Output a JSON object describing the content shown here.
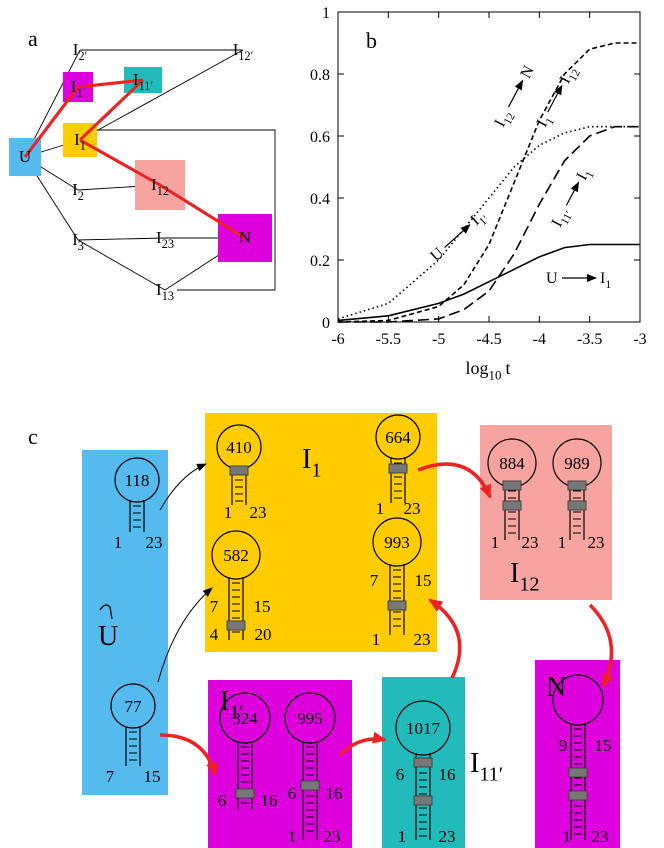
{
  "panel_a": {
    "label": "a",
    "nodes": [
      {
        "main": "I",
        "sub": "2′"
      },
      {
        "main": "I",
        "sub": "12′"
      },
      {
        "main": "I",
        "sub": "1′",
        "color": "#dd00dd"
      },
      {
        "main": "I",
        "sub": "11′",
        "color": "#22bbbb"
      },
      {
        "main": "U",
        "color": "#55bbee"
      },
      {
        "main": "I",
        "sub": "1",
        "color": "#ffcc00"
      },
      {
        "main": "I",
        "sub": "12",
        "color": "#f7a3a0"
      },
      {
        "main": "I",
        "sub": "2"
      },
      {
        "main": "I",
        "sub": "3"
      },
      {
        "main": "I",
        "sub": "23"
      },
      {
        "main": "N",
        "color": "#dd00dd"
      },
      {
        "main": "I",
        "sub": "13"
      }
    ],
    "edges": [
      {
        "from": 4,
        "to": 0,
        "color": "#000000"
      },
      {
        "from": 0,
        "to": 1,
        "color": "#000000"
      },
      {
        "from": 1,
        "to": 5,
        "color": "#000000"
      },
      {
        "from": 4,
        "to": 5,
        "color": "#000000"
      },
      {
        "from": 4,
        "to": 7,
        "color": "#000000"
      },
      {
        "from": 7,
        "to": 6,
        "color": "#000000"
      },
      {
        "from": 4,
        "to": 8,
        "color": "#000000"
      },
      {
        "from": 8,
        "to": 9,
        "color": "#000000"
      },
      {
        "from": 9,
        "to": 10,
        "color": "#000000"
      },
      {
        "from": 8,
        "to": 11,
        "color": "#000000"
      },
      {
        "from": 11,
        "to": 10,
        "color": "#000000"
      },
      {
        "from": 5,
        "to": 11,
        "color": "#000000"
      },
      {
        "from": 4,
        "to": 2,
        "color": "#ee2222"
      },
      {
        "from": 2,
        "to": 3,
        "color": "#ee2222"
      },
      {
        "from": 3,
        "to": 5,
        "color": "#ee2222"
      },
      {
        "from": 5,
        "to": 6,
        "color": "#ee2222"
      },
      {
        "from": 6,
        "to": 10,
        "color": "#ee2222"
      }
    ]
  },
  "chart_data": {
    "type": "line",
    "panel_label": "b",
    "x_label": {
      "main": "log",
      "sub": "10",
      "tail": "t"
    },
    "x": [
      -6,
      -5.5,
      -5,
      -4.75,
      -4.5,
      -4.25,
      -4,
      -3.75,
      -3.5,
      -3.25,
      -3
    ],
    "series": [
      {
        "color": "#000000",
        "dash": "solid",
        "values": [
          0.005,
          0.02,
          0.06,
          0.09,
          0.13,
          0.17,
          0.21,
          0.24,
          0.25,
          0.25,
          0.25
        ]
      },
      {
        "color": "#000000",
        "dash": "dotted",
        "values": [
          0.01,
          0.06,
          0.2,
          0.3,
          0.4,
          0.5,
          0.57,
          0.61,
          0.63,
          0.63,
          0.63
        ]
      },
      {
        "color": "#000000",
        "dash": "dashed",
        "values": [
          0,
          0.005,
          0.05,
          0.12,
          0.25,
          0.45,
          0.65,
          0.8,
          0.88,
          0.9,
          0.9
        ]
      },
      {
        "color": "#000000",
        "dash": "longdash",
        "values": [
          0,
          0,
          0.01,
          0.04,
          0.1,
          0.22,
          0.38,
          0.52,
          0.6,
          0.63,
          0.63
        ]
      }
    ],
    "xlim": [
      -6,
      -3
    ],
    "ylim": [
      0,
      1
    ],
    "xticks": [
      -6,
      -5.5,
      -5,
      -4.5,
      -4,
      -3.5,
      -3
    ],
    "yticks": [
      0,
      0.2,
      0.4,
      0.6,
      0.8,
      1
    ],
    "annotations": [
      {
        "from": {
          "main": "I",
          "sub": "12"
        },
        "to": {
          "main": "N"
        }
      },
      {
        "from": {
          "main": "I",
          "sub": "1"
        },
        "to": {
          "main": "I",
          "sub": "12"
        }
      },
      {
        "from": {
          "main": "U"
        },
        "to": {
          "main": "I",
          "sub": "1′"
        }
      },
      {
        "from": {
          "main": "I",
          "sub": "11′"
        },
        "to": {
          "main": "I",
          "sub": "1"
        }
      },
      {
        "from": {
          "main": "U"
        },
        "to": {
          "main": "I",
          "sub": "1"
        }
      }
    ]
  },
  "panel_c": {
    "label": "c",
    "groups": [
      {
        "name": {
          "main": "U"
        },
        "color": "#55bbee",
        "hairpins": [
          {
            "loop": "118",
            "labels": [
              "1",
              "23"
            ]
          },
          {
            "loop": "77",
            "labels": [
              "7",
              "15"
            ]
          }
        ]
      },
      {
        "name": {
          "main": "I",
          "sub": "1"
        },
        "color": "#ffcc00",
        "hairpins": [
          {
            "loop": "410",
            "labels": [
              "1",
              "23"
            ]
          },
          {
            "loop": "664",
            "labels": [
              "1",
              "23"
            ]
          },
          {
            "loop": "582",
            "labels": [
              "7",
              "15",
              "4",
              "20"
            ]
          },
          {
            "loop": "993",
            "labels": [
              "7",
              "15",
              "1",
              "23"
            ]
          }
        ]
      },
      {
        "name": {
          "main": "I",
          "sub": "12"
        },
        "color": "#f7a3a0",
        "hairpins": [
          {
            "loop": "884",
            "labels": [
              "1",
              "23"
            ]
          },
          {
            "loop": "989",
            "labels": [
              "1",
              "23"
            ]
          }
        ]
      },
      {
        "name": {
          "main": "I",
          "sub": "1′"
        },
        "color": "#dd00dd",
        "hairpins": [
          {
            "loop": "324",
            "labels": [
              "6",
              "16"
            ]
          },
          {
            "loop": "995",
            "labels": [
              "6",
              "16",
              "1",
              "23"
            ]
          }
        ]
      },
      {
        "name": {
          "main": "I",
          "sub": "11′"
        },
        "color": "#22bbbb",
        "hairpins": [
          {
            "loop": "1017",
            "labels": [
              "6",
              "16",
              "1",
              "23"
            ]
          }
        ]
      },
      {
        "name": {
          "main": "N"
        },
        "color": "#dd00dd",
        "hairpins": [
          {
            "labels": [
              "9",
              "15",
              "1",
              "23"
            ]
          }
        ]
      }
    ]
  }
}
